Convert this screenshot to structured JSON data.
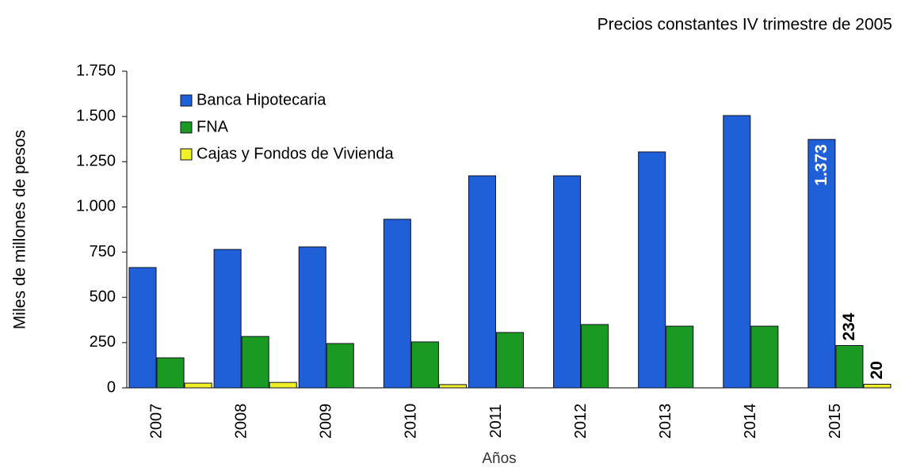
{
  "chart_data": {
    "type": "bar",
    "subtitle": "Precios constantes IV trimestre de 2005",
    "y_label": "Miles de millones de pesos",
    "x_label": "Años",
    "categories": [
      "2007",
      "2008",
      "2009",
      "2010",
      "2011",
      "2012",
      "2013",
      "2014",
      "2015"
    ],
    "series": [
      {
        "name": "Banca Hipotecaria",
        "color": "#1f5fd8",
        "values": [
          665,
          765,
          779,
          932,
          1172,
          1172,
          1304,
          1505,
          1373
        ],
        "value_labels": [
          null,
          null,
          null,
          null,
          null,
          null,
          null,
          null,
          "1.373"
        ]
      },
      {
        "name": "FNA",
        "color": "#1a9a22",
        "values": [
          166,
          284,
          245,
          254,
          306,
          350,
          341,
          341,
          234
        ],
        "value_labels": [
          null,
          null,
          null,
          null,
          null,
          null,
          null,
          null,
          "234"
        ]
      },
      {
        "name": "Cajas y Fondos de Vivienda",
        "color": "#f0f028",
        "values": [
          26,
          30,
          null,
          18,
          null,
          null,
          null,
          null,
          20
        ],
        "value_labels": [
          null,
          null,
          null,
          null,
          null,
          null,
          null,
          null,
          "20"
        ]
      }
    ],
    "ylim": [
      0,
      1750
    ],
    "yticks": [
      0,
      250,
      500,
      750,
      {
        "value": 1000,
        "label": "1.000"
      },
      {
        "value": 1250,
        "label": "1.250"
      },
      {
        "value": 1500,
        "label": "1.500"
      },
      {
        "value": 1750,
        "label": "1.750"
      }
    ],
    "legend": "upper left"
  }
}
